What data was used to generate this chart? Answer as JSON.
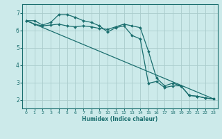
{
  "xlabel": "Humidex (Indice chaleur)",
  "bg_color": "#cceaea",
  "grid_color": "#aacccc",
  "line_color": "#1a6e6e",
  "xlim": [
    -0.5,
    23.5
  ],
  "ylim": [
    1.5,
    7.5
  ],
  "xticks": [
    0,
    1,
    2,
    3,
    4,
    5,
    6,
    7,
    8,
    9,
    10,
    11,
    12,
    13,
    14,
    15,
    16,
    17,
    18,
    19,
    20,
    21,
    22,
    23
  ],
  "yticks": [
    2,
    3,
    4,
    5,
    6,
    7
  ],
  "line1_x": [
    0,
    1,
    2,
    3,
    4,
    5,
    6,
    7,
    8,
    9,
    10,
    11,
    12,
    13,
    14,
    15,
    16,
    17,
    18,
    19,
    20,
    21,
    22,
    23
  ],
  "line1_y": [
    6.55,
    6.35,
    6.25,
    6.3,
    6.35,
    6.25,
    6.2,
    6.25,
    6.2,
    6.1,
    6.05,
    6.2,
    6.35,
    6.25,
    6.15,
    4.8,
    3.25,
    2.8,
    2.95,
    2.8,
    2.25,
    2.2,
    2.1,
    2.05
  ],
  "line2_x": [
    0,
    1,
    2,
    3,
    4,
    5,
    6,
    7,
    8,
    9,
    10,
    11,
    12,
    13,
    14,
    15,
    16,
    17,
    18,
    19,
    20,
    21,
    22,
    23
  ],
  "line2_y": [
    6.55,
    6.55,
    6.3,
    6.45,
    6.9,
    6.9,
    6.75,
    6.55,
    6.45,
    6.25,
    5.9,
    6.15,
    6.25,
    5.7,
    5.5,
    2.95,
    3.05,
    2.7,
    2.8,
    2.8,
    2.25,
    2.2,
    2.1,
    2.05
  ],
  "line3_x": [
    0,
    23
  ],
  "line3_y": [
    6.55,
    2.05
  ]
}
